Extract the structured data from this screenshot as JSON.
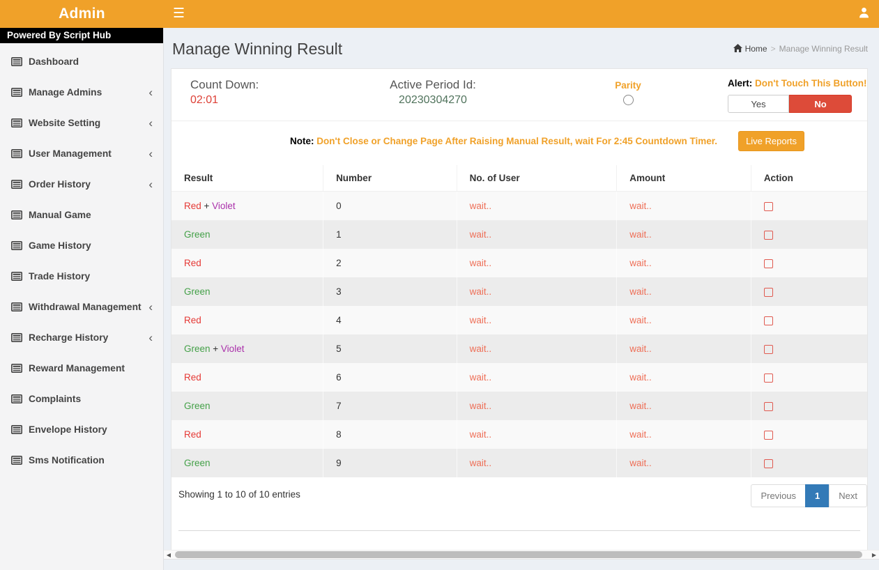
{
  "navbar": {
    "brand": "Admin"
  },
  "sidebar": {
    "powered_by": "Powered By Script Hub",
    "items": [
      {
        "label": "Dashboard",
        "chevron": false
      },
      {
        "label": "Manage Admins",
        "chevron": true
      },
      {
        "label": "Website Setting",
        "chevron": true
      },
      {
        "label": "User Management",
        "chevron": true
      },
      {
        "label": "Order History",
        "chevron": true
      },
      {
        "label": "Manual Game",
        "chevron": false
      },
      {
        "label": "Game History",
        "chevron": false
      },
      {
        "label": "Trade History",
        "chevron": false
      },
      {
        "label": "Withdrawal Management",
        "chevron": true
      },
      {
        "label": "Recharge History",
        "chevron": true
      },
      {
        "label": "Reward Management",
        "chevron": false
      },
      {
        "label": "Complaints",
        "chevron": false
      },
      {
        "label": "Envelope History",
        "chevron": false
      },
      {
        "label": "Sms Notification",
        "chevron": false
      }
    ]
  },
  "header": {
    "title": "Manage Winning Result",
    "breadcrumb_home": "Home",
    "breadcrumb_sep": ">",
    "breadcrumb_current": "Manage Winning Result"
  },
  "status": {
    "countdown_label": "Count Down:",
    "countdown_value": "02:01",
    "period_label": "Active Period Id:",
    "period_value": "20230304270",
    "parity_label": "Parity",
    "alert_label": "Alert:",
    "alert_text": "Don't Touch This Button!",
    "yes_label": "Yes",
    "no_label": "No"
  },
  "note": {
    "label": "Note:",
    "text": "Don't Close or Change Page After Raising Manual Result, wait For 2:45 Countdown Timer.",
    "live_reports_label": "Live Reports"
  },
  "table": {
    "columns": [
      "Result",
      "Number",
      "No. of User",
      "Amount",
      "Action"
    ],
    "rows": [
      {
        "result": [
          {
            "text": "Red",
            "color": "red"
          },
          {
            "text": " + ",
            "color": "plain"
          },
          {
            "text": "Violet",
            "color": "violet"
          }
        ],
        "number": "0",
        "users": "wait..",
        "amount": "wait.."
      },
      {
        "result": [
          {
            "text": "Green",
            "color": "green"
          }
        ],
        "number": "1",
        "users": "wait..",
        "amount": "wait.."
      },
      {
        "result": [
          {
            "text": "Red",
            "color": "red"
          }
        ],
        "number": "2",
        "users": "wait..",
        "amount": "wait.."
      },
      {
        "result": [
          {
            "text": "Green",
            "color": "green"
          }
        ],
        "number": "3",
        "users": "wait..",
        "amount": "wait.."
      },
      {
        "result": [
          {
            "text": "Red",
            "color": "red"
          }
        ],
        "number": "4",
        "users": "wait..",
        "amount": "wait.."
      },
      {
        "result": [
          {
            "text": "Green",
            "color": "green"
          },
          {
            "text": " + ",
            "color": "plain"
          },
          {
            "text": "Violet",
            "color": "violet"
          }
        ],
        "number": "5",
        "users": "wait..",
        "amount": "wait.."
      },
      {
        "result": [
          {
            "text": "Red",
            "color": "red"
          }
        ],
        "number": "6",
        "users": "wait..",
        "amount": "wait.."
      },
      {
        "result": [
          {
            "text": "Green",
            "color": "green"
          }
        ],
        "number": "7",
        "users": "wait..",
        "amount": "wait.."
      },
      {
        "result": [
          {
            "text": "Red",
            "color": "red"
          }
        ],
        "number": "8",
        "users": "wait..",
        "amount": "wait.."
      },
      {
        "result": [
          {
            "text": "Green",
            "color": "green"
          }
        ],
        "number": "9",
        "users": "wait..",
        "amount": "wait.."
      }
    ]
  },
  "footer": {
    "showing": "Showing 1 to 10 of 10 entries",
    "previous": "Previous",
    "page": "1",
    "next": "Next"
  },
  "colors": {
    "accent_orange": "#f0a129",
    "danger_red": "#dd4b39",
    "countdown_red": "#dd4036",
    "period_green": "#50735c",
    "red": "#e53935",
    "green": "#43a047",
    "violet": "#aa30aa",
    "plain": "#333333",
    "wait": "#ee6e56",
    "active_page_blue": "#337ab7"
  },
  "icons": {
    "hamburger": "menu-icon",
    "user": "user-icon",
    "home": "home-icon",
    "sidebar_item": "list-icon"
  }
}
